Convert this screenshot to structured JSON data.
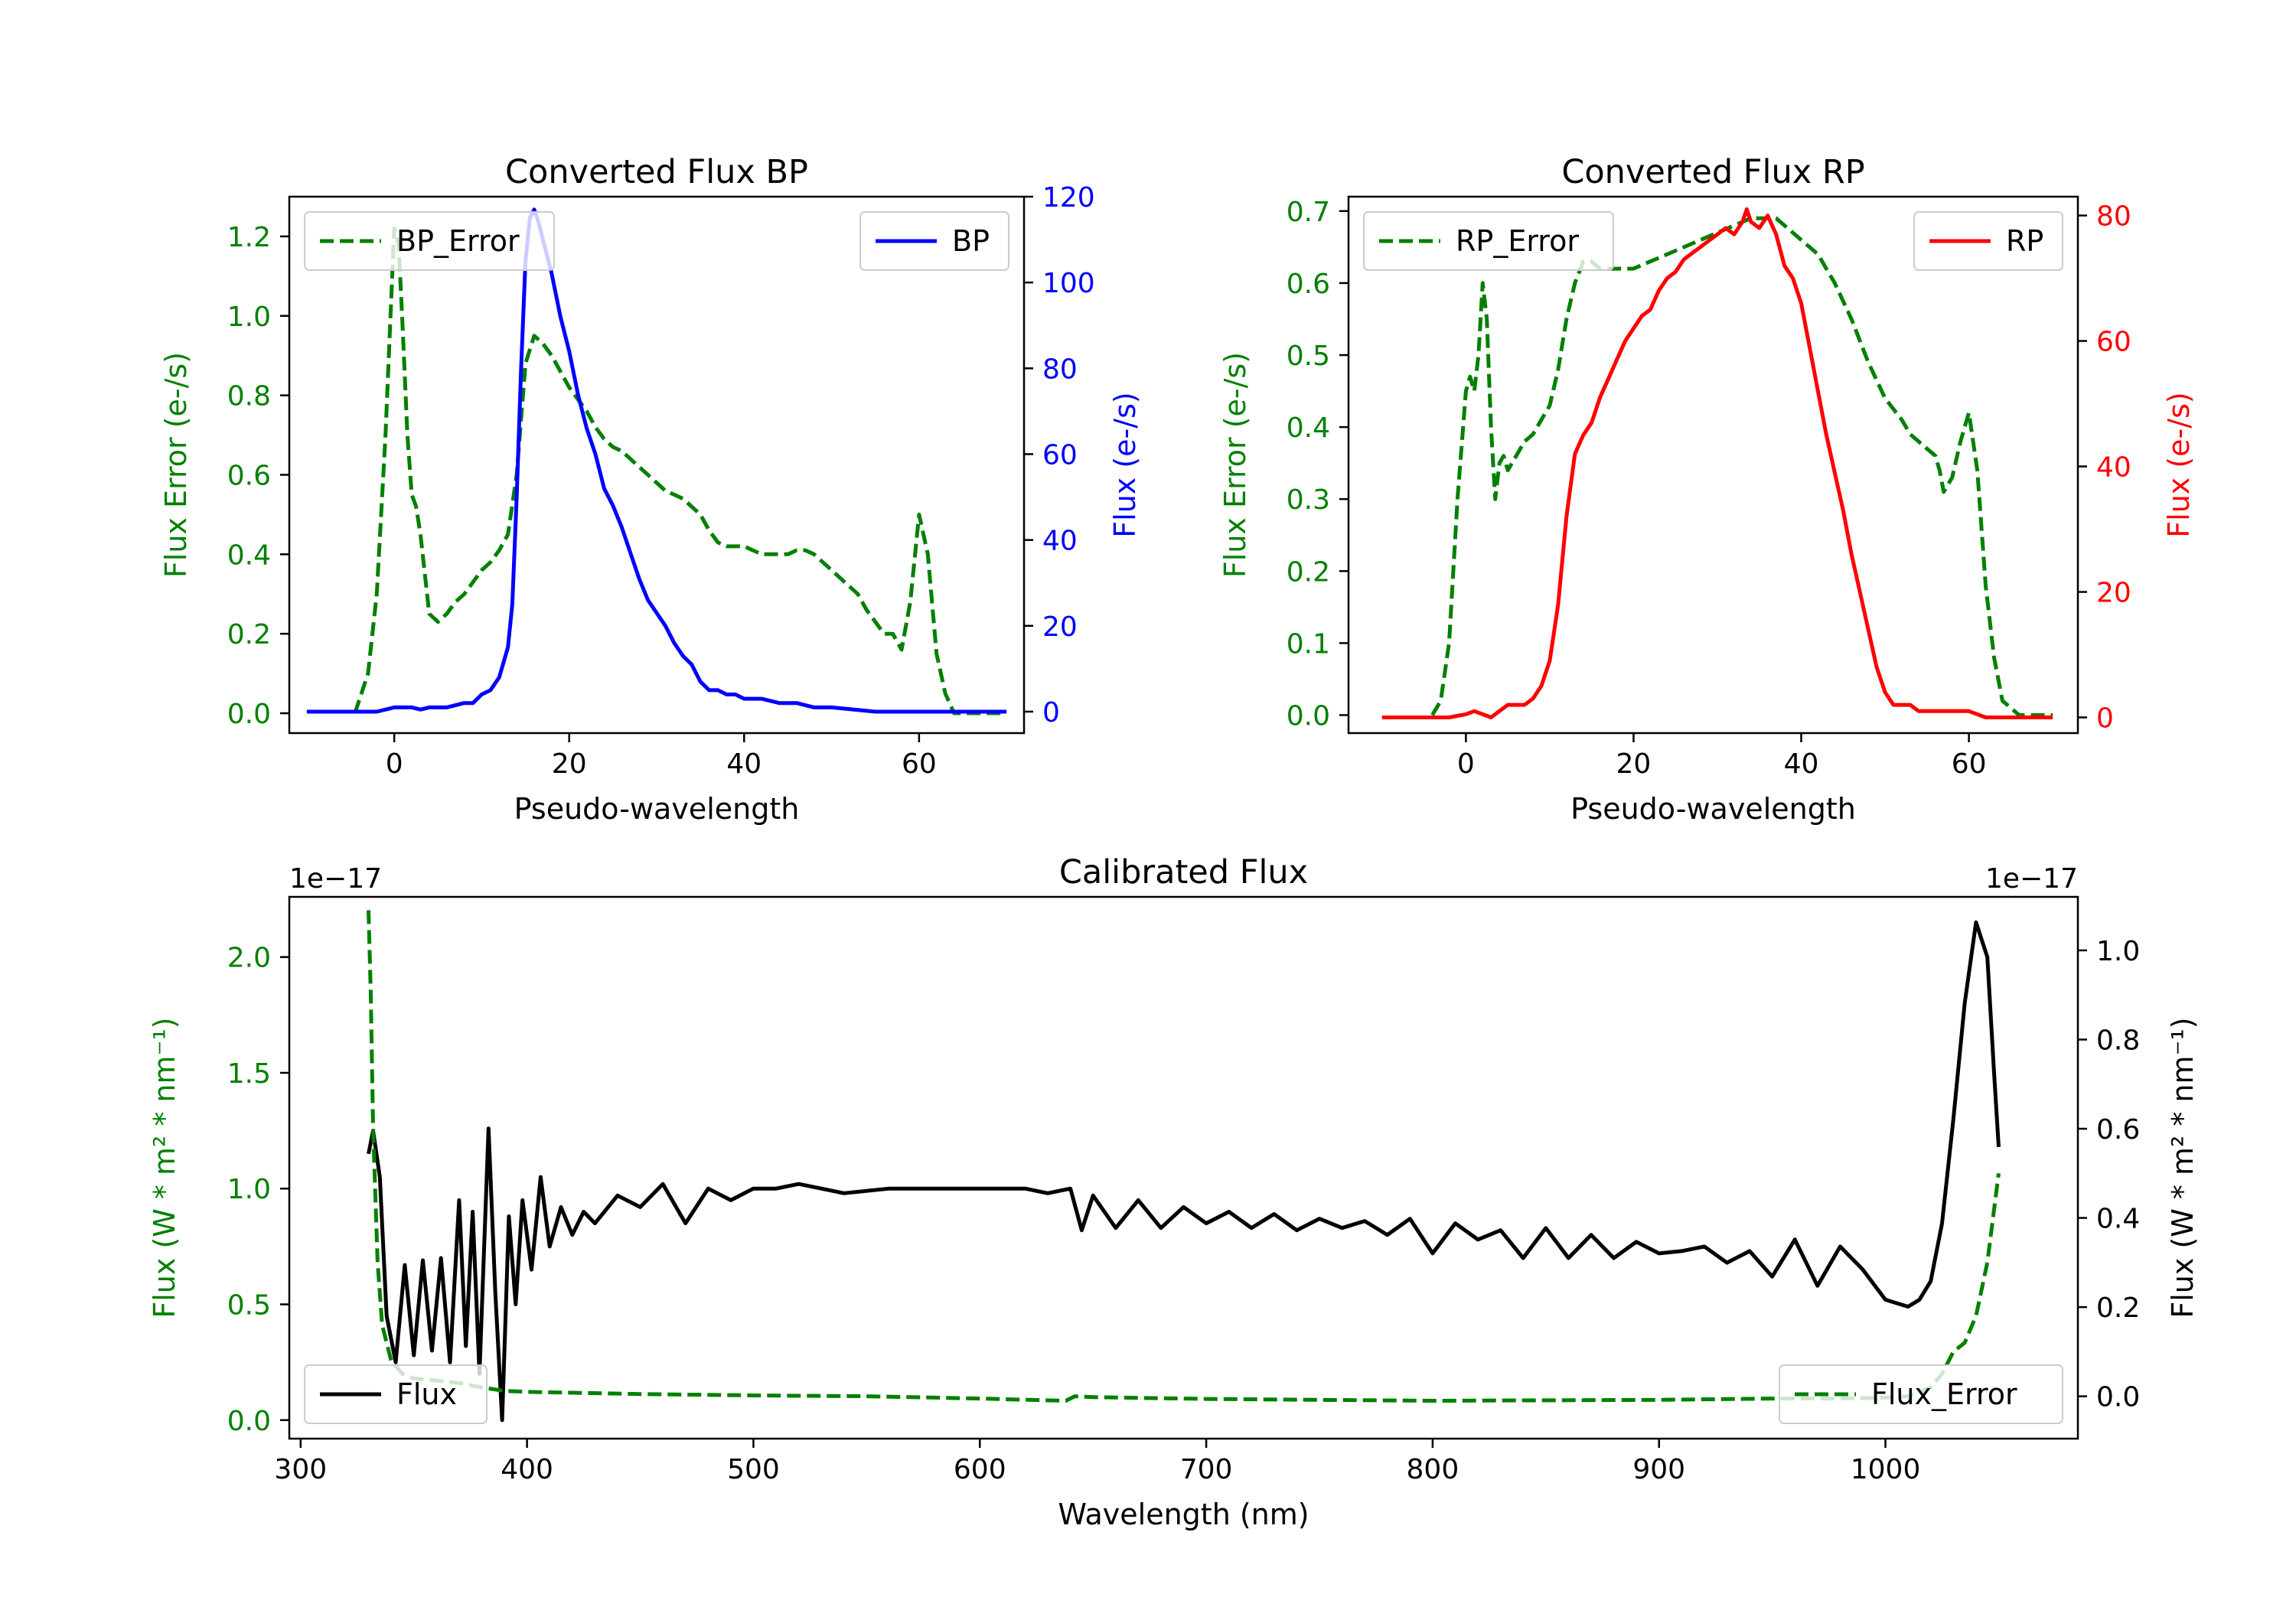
{
  "chart_data": [
    {
      "type": "line",
      "title": "Converted Flux BP",
      "xlabel": "Pseudo-wavelength",
      "ylabel_left": "Flux Error (e-/s)",
      "ylabel_right": "Flux (e-/s)",
      "xlim": [
        -12,
        72
      ],
      "ylim_left": [
        -0.05,
        1.3
      ],
      "ylim_right": [
        -5,
        120
      ],
      "xticks": [
        0,
        20,
        40,
        60
      ],
      "yticks_left": [
        0.0,
        0.2,
        0.4,
        0.6,
        0.8,
        1.0,
        1.2
      ],
      "yticks_right": [
        0,
        20,
        40,
        60,
        80,
        100,
        120
      ],
      "legend_left": "top-left",
      "legend_right": "top-right",
      "series": [
        {
          "name": "BP_Error",
          "axis": "left",
          "color": "#008000",
          "dash": true,
          "x": [
            -4.5,
            -3,
            -2,
            -1,
            0,
            0.5,
            1,
            1.5,
            2,
            2.5,
            3,
            4,
            5,
            6,
            7,
            8,
            9,
            10,
            11,
            12,
            13,
            14,
            15,
            16,
            17,
            18,
            19,
            20,
            21,
            22,
            23,
            24,
            25,
            26,
            27,
            28,
            29,
            30,
            31,
            32,
            33,
            34,
            35,
            36,
            37,
            38,
            39,
            40,
            41,
            42,
            43,
            44,
            45,
            46,
            47,
            48,
            49,
            50,
            51,
            52,
            53,
            54,
            55,
            56,
            57,
            58,
            59,
            60,
            61,
            62,
            63,
            64,
            66,
            70
          ],
          "values": [
            0.0,
            0.1,
            0.3,
            0.7,
            1.22,
            1.18,
            0.95,
            0.7,
            0.55,
            0.52,
            0.45,
            0.25,
            0.23,
            0.25,
            0.28,
            0.3,
            0.33,
            0.36,
            0.38,
            0.41,
            0.45,
            0.6,
            0.88,
            0.95,
            0.93,
            0.9,
            0.86,
            0.82,
            0.79,
            0.76,
            0.72,
            0.69,
            0.67,
            0.66,
            0.64,
            0.62,
            0.6,
            0.58,
            0.56,
            0.55,
            0.54,
            0.52,
            0.5,
            0.46,
            0.43,
            0.42,
            0.42,
            0.42,
            0.41,
            0.4,
            0.4,
            0.4,
            0.4,
            0.41,
            0.41,
            0.4,
            0.38,
            0.36,
            0.34,
            0.32,
            0.3,
            0.26,
            0.23,
            0.2,
            0.2,
            0.16,
            0.28,
            0.5,
            0.4,
            0.15,
            0.05,
            0.0,
            0.0,
            0.0
          ]
        },
        {
          "name": "BP",
          "axis": "right",
          "color": "#0000ff",
          "dash": false,
          "x": [
            -10,
            -5,
            -2,
            0,
            1,
            2,
            3,
            4,
            6,
            8,
            9,
            10,
            11,
            12,
            13,
            13.5,
            14,
            14.5,
            15,
            15.5,
            16,
            16.5,
            17,
            18,
            19,
            20,
            21,
            22,
            23,
            24,
            25,
            26,
            27,
            28,
            29,
            30,
            31,
            32,
            33,
            34,
            35,
            36,
            37,
            38,
            39,
            40,
            42,
            44,
            46,
            48,
            50,
            55,
            60,
            70
          ],
          "values": [
            0,
            0,
            0,
            1,
            1,
            1,
            0.5,
            1,
            1,
            2,
            2,
            4,
            5,
            8,
            15,
            25,
            50,
            80,
            105,
            115,
            117,
            114,
            110,
            102,
            92,
            84,
            74,
            66,
            60,
            52,
            48,
            43,
            37,
            31,
            26,
            23,
            20,
            16,
            13,
            11,
            7,
            5,
            5,
            4,
            4,
            3,
            3,
            2,
            2,
            1,
            1,
            0,
            0,
            0
          ]
        }
      ]
    },
    {
      "type": "line",
      "title": "Converted Flux RP",
      "xlabel": "Pseudo-wavelength",
      "ylabel_left": "Flux Error (e-/s)",
      "ylabel_right": "Flux (e-/s)",
      "xlim": [
        -14,
        73
      ],
      "ylim_left": [
        -0.025,
        0.72
      ],
      "ylim_right": [
        -2.5,
        83
      ],
      "xticks": [
        0,
        20,
        40,
        60
      ],
      "yticks_left": [
        0.0,
        0.1,
        0.2,
        0.3,
        0.4,
        0.5,
        0.6,
        0.7
      ],
      "yticks_right": [
        0,
        20,
        40,
        60,
        80
      ],
      "legend_left": "top-left",
      "legend_right": "top-right",
      "series": [
        {
          "name": "RP_Error",
          "axis": "left",
          "color": "#008000",
          "dash": true,
          "x": [
            -4,
            -3,
            -2,
            -1,
            0,
            0.5,
            1,
            1.5,
            2,
            2.5,
            3,
            3.5,
            4,
            4.5,
            5,
            6,
            7,
            8,
            9,
            10,
            11,
            12,
            13,
            14,
            15,
            16,
            17,
            18,
            20,
            22,
            24,
            26,
            28,
            30,
            32,
            34,
            36,
            37,
            38,
            40,
            42,
            44,
            46,
            48,
            50,
            52,
            53,
            54,
            55,
            56,
            56.5,
            57,
            58,
            59,
            60,
            61,
            62,
            63,
            64,
            66,
            70
          ],
          "values": [
            0.0,
            0.02,
            0.1,
            0.3,
            0.45,
            0.47,
            0.45,
            0.5,
            0.6,
            0.55,
            0.4,
            0.3,
            0.35,
            0.36,
            0.34,
            0.36,
            0.38,
            0.39,
            0.41,
            0.43,
            0.48,
            0.55,
            0.6,
            0.63,
            0.63,
            0.62,
            0.62,
            0.62,
            0.62,
            0.63,
            0.64,
            0.65,
            0.66,
            0.67,
            0.68,
            0.69,
            0.69,
            0.69,
            0.68,
            0.66,
            0.64,
            0.6,
            0.55,
            0.49,
            0.44,
            0.41,
            0.39,
            0.38,
            0.37,
            0.36,
            0.34,
            0.31,
            0.33,
            0.38,
            0.42,
            0.34,
            0.18,
            0.08,
            0.02,
            0.0,
            0.0
          ]
        },
        {
          "name": "RP",
          "axis": "right",
          "color": "#ff0000",
          "dash": false,
          "x": [
            -10,
            -5,
            -2,
            0,
            1,
            2,
            3,
            4,
            5,
            6,
            7,
            8,
            9,
            10,
            11,
            12,
            13,
            14,
            15,
            16,
            17,
            18,
            19,
            20,
            21,
            22,
            23,
            24,
            25,
            26,
            27,
            28,
            29,
            30,
            31,
            32,
            33,
            33.5,
            34,
            35,
            36,
            37,
            38,
            39,
            40,
            41,
            42,
            43,
            44,
            45,
            46,
            47,
            48,
            49,
            50,
            51,
            52,
            53,
            54,
            55,
            56,
            58,
            60,
            62,
            64,
            70
          ],
          "values": [
            0,
            0,
            0,
            0.5,
            1,
            0.5,
            0,
            1,
            2,
            2,
            2,
            3,
            5,
            9,
            18,
            32,
            42,
            45,
            47,
            51,
            54,
            57,
            60,
            62,
            64,
            65,
            68,
            70,
            71,
            73,
            74,
            75,
            76,
            77,
            78,
            77,
            79,
            81,
            79,
            78,
            80,
            77,
            72,
            70,
            66,
            59,
            52,
            45,
            39,
            33,
            26,
            20,
            14,
            8,
            4,
            2,
            2,
            2,
            1,
            1,
            1,
            1,
            1,
            0,
            0,
            0
          ]
        }
      ]
    },
    {
      "type": "line",
      "title": "Calibrated Flux",
      "xlabel": "Wavelength (nm)",
      "ylabel_left": "Flux (W * m² * nm⁻¹)",
      "ylabel_right": "Flux (W * m² * nm⁻¹)",
      "left_offset": "1e−17",
      "right_offset": "1e−17",
      "xlim": [
        295,
        1085
      ],
      "ylim_left": [
        -0.08,
        2.26
      ],
      "ylim_right": [
        -0.095,
        1.12
      ],
      "xticks": [
        300,
        400,
        500,
        600,
        700,
        800,
        900,
        1000
      ],
      "yticks_left": [
        0.0,
        0.5,
        1.0,
        1.5,
        2.0
      ],
      "yticks_right": [
        0.0,
        0.2,
        0.4,
        0.6,
        0.8,
        1.0
      ],
      "legend_left": "bottom-left",
      "legend_right": "bottom-right",
      "series": [
        {
          "name": "Flux",
          "axis": "left",
          "color": "#000000",
          "dash": false,
          "x": [
            330,
            332,
            335,
            338,
            342,
            346,
            350,
            354,
            358,
            362,
            366,
            370,
            373,
            376,
            379,
            383,
            386,
            389,
            392,
            395,
            398,
            402,
            406,
            410,
            415,
            420,
            425,
            430,
            440,
            450,
            460,
            470,
            480,
            490,
            500,
            510,
            520,
            530,
            540,
            560,
            580,
            600,
            610,
            620,
            630,
            640,
            645,
            650,
            660,
            670,
            680,
            690,
            700,
            710,
            720,
            730,
            740,
            750,
            760,
            770,
            780,
            790,
            800,
            810,
            820,
            830,
            840,
            850,
            860,
            870,
            880,
            890,
            900,
            910,
            920,
            930,
            940,
            950,
            960,
            970,
            980,
            990,
            1000,
            1010,
            1015,
            1020,
            1025,
            1030,
            1035,
            1040,
            1045,
            1048,
            1050
          ],
          "values": [
            1.15,
            1.25,
            1.05,
            0.45,
            0.25,
            0.67,
            0.28,
            0.69,
            0.3,
            0.7,
            0.25,
            0.95,
            0.32,
            0.9,
            0.2,
            1.26,
            0.55,
            0.0,
            0.88,
            0.5,
            0.95,
            0.65,
            1.05,
            0.75,
            0.92,
            0.8,
            0.9,
            0.85,
            0.97,
            0.92,
            1.02,
            0.85,
            1.0,
            0.95,
            1.0,
            1.0,
            1.02,
            1.0,
            0.98,
            1.0,
            1.0,
            1.0,
            1.0,
            1.0,
            0.98,
            1.0,
            0.82,
            0.97,
            0.83,
            0.95,
            0.83,
            0.92,
            0.85,
            0.9,
            0.83,
            0.89,
            0.82,
            0.87,
            0.83,
            0.86,
            0.8,
            0.87,
            0.72,
            0.85,
            0.78,
            0.82,
            0.7,
            0.83,
            0.7,
            0.8,
            0.7,
            0.77,
            0.72,
            0.73,
            0.75,
            0.68,
            0.73,
            0.62,
            0.78,
            0.58,
            0.75,
            0.65,
            0.52,
            0.49,
            0.52,
            0.6,
            0.85,
            1.3,
            1.8,
            2.15,
            2.0,
            1.5,
            1.18
          ]
        },
        {
          "name": "Flux_Error",
          "axis": "right",
          "color": "#008000",
          "dash": true,
          "x": [
            330,
            331,
            332,
            334,
            336,
            340,
            345,
            350,
            360,
            370,
            380,
            390,
            400,
            420,
            450,
            500,
            550,
            600,
            638,
            642,
            650,
            700,
            800,
            900,
            950,
            980,
            1000,
            1010,
            1020,
            1025,
            1030,
            1035,
            1040,
            1045,
            1050
          ],
          "values": [
            1.09,
            0.9,
            0.6,
            0.3,
            0.16,
            0.08,
            0.05,
            0.04,
            0.035,
            0.03,
            0.02,
            0.012,
            0.01,
            0.008,
            0.005,
            0.002,
            0.0,
            -0.005,
            -0.01,
            0.0,
            -0.002,
            -0.006,
            -0.01,
            -0.008,
            -0.005,
            -0.005,
            -0.003,
            0.0,
            0.02,
            0.05,
            0.1,
            0.12,
            0.18,
            0.3,
            0.5
          ]
        }
      ]
    }
  ]
}
